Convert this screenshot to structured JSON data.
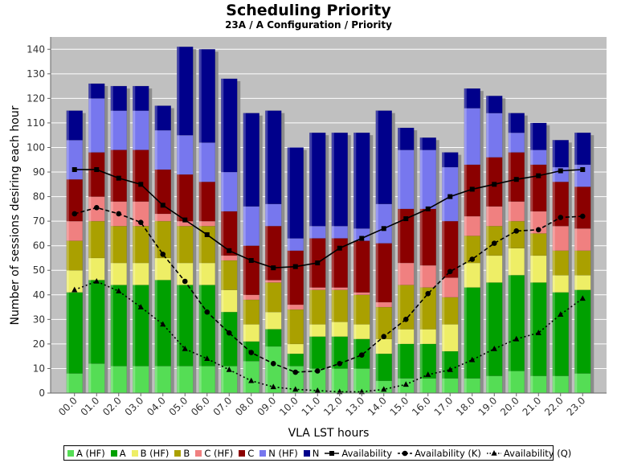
{
  "chart_data": {
    "type": "bar",
    "title": "Scheduling Priority",
    "subtitle": "23A / A Configuration /  Priority",
    "xlabel": "VLA LST hours",
    "ylabel": "Number of sessions desiring each hour",
    "ylim": [
      0,
      145
    ],
    "yticks": [
      0,
      10,
      20,
      30,
      40,
      50,
      60,
      70,
      80,
      90,
      100,
      110,
      120,
      130,
      140
    ],
    "grid": true,
    "legend_position": "bottom",
    "categories": [
      "00.0",
      "01.0",
      "02.0",
      "03.0",
      "04.0",
      "05.0",
      "06.0",
      "07.0",
      "08.0",
      "09.0",
      "10.0",
      "11.0",
      "12.0",
      "13.0",
      "14.0",
      "15.0",
      "16.0",
      "17.0",
      "18.0",
      "19.0",
      "20.0",
      "21.0",
      "22.0",
      "23.0"
    ],
    "stacked_series": [
      {
        "name": "A (HF)",
        "color": "#55dd55",
        "values": [
          8,
          12,
          11,
          11,
          11,
          11,
          11,
          11,
          13,
          19,
          11,
          10,
          10,
          10,
          5,
          6,
          6,
          6,
          6,
          7,
          9,
          7,
          7,
          8
        ]
      },
      {
        "name": "A",
        "color": "#00a000",
        "values": [
          33,
          34,
          33,
          33,
          35,
          33,
          33,
          22,
          8,
          7,
          5,
          13,
          13,
          12,
          11,
          14,
          14,
          11,
          37,
          38,
          39,
          38,
          34,
          34
        ]
      },
      {
        "name": "B (HF)",
        "color": "#eeee66",
        "values": [
          9,
          9,
          9,
          9,
          9,
          9,
          9,
          9,
          7,
          7,
          4,
          5,
          6,
          6,
          6,
          6,
          6,
          11,
          10,
          11,
          11,
          11,
          7,
          6
        ]
      },
      {
        "name": "B",
        "color": "#aaa000",
        "values": [
          12,
          15,
          15,
          15,
          15,
          15,
          15,
          12,
          10,
          12,
          14,
          14,
          13,
          12,
          13,
          18,
          17,
          11,
          11,
          12,
          11,
          9,
          10,
          10
        ]
      },
      {
        "name": "C (HF)",
        "color": "#f08080",
        "values": [
          8,
          10,
          10,
          10,
          3,
          2,
          2,
          2,
          2,
          1,
          2,
          1,
          1,
          1,
          2,
          9,
          9,
          8,
          8,
          8,
          8,
          9,
          10,
          9
        ]
      },
      {
        "name": "C",
        "color": "#8b0000",
        "values": [
          17,
          18,
          21,
          21,
          18,
          19,
          16,
          18,
          20,
          22,
          22,
          20,
          20,
          21,
          24,
          22,
          23,
          23,
          21,
          20,
          20,
          19,
          18,
          17
        ]
      },
      {
        "name": "N (HF)",
        "color": "#7777ee",
        "values": [
          16,
          22,
          16,
          16,
          16,
          16,
          16,
          16,
          16,
          9,
          5,
          5,
          5,
          5,
          16,
          24,
          24,
          22,
          23,
          18,
          8,
          6,
          6,
          9
        ]
      },
      {
        "name": "N",
        "color": "#00008b",
        "values": [
          12,
          6,
          10,
          10,
          10,
          36,
          38,
          38,
          38,
          38,
          37,
          38,
          38,
          39,
          38,
          9,
          5,
          6,
          8,
          7,
          8,
          11,
          11,
          13
        ]
      }
    ],
    "line_series": [
      {
        "name": "Availability",
        "marker": "square",
        "dash": "solid",
        "values": [
          91,
          91,
          87.5,
          85,
          76.5,
          70.5,
          64.5,
          58,
          54,
          51,
          51.5,
          53,
          59,
          63,
          67,
          71,
          75,
          80,
          83,
          85,
          87,
          88.5,
          90.5,
          91
        ]
      },
      {
        "name": "Availability (K)",
        "marker": "circle",
        "dash": "dashed",
        "values": [
          73,
          75.5,
          73,
          69.5,
          56.5,
          45.5,
          33,
          24.5,
          16.5,
          12,
          8.5,
          9,
          12,
          15.5,
          23,
          30,
          40.5,
          49.5,
          54.5,
          61,
          66,
          66.5,
          71.5,
          72
        ]
      },
      {
        "name": "Availability (Q)",
        "marker": "triangle",
        "dash": "dotted",
        "values": [
          42,
          45.5,
          41.5,
          35,
          28,
          18,
          14,
          9.5,
          5,
          2.5,
          1.5,
          1,
          0.5,
          0.5,
          1.5,
          3.5,
          7.5,
          9.5,
          13.5,
          18,
          22,
          24.5,
          32,
          38.5
        ]
      }
    ]
  }
}
